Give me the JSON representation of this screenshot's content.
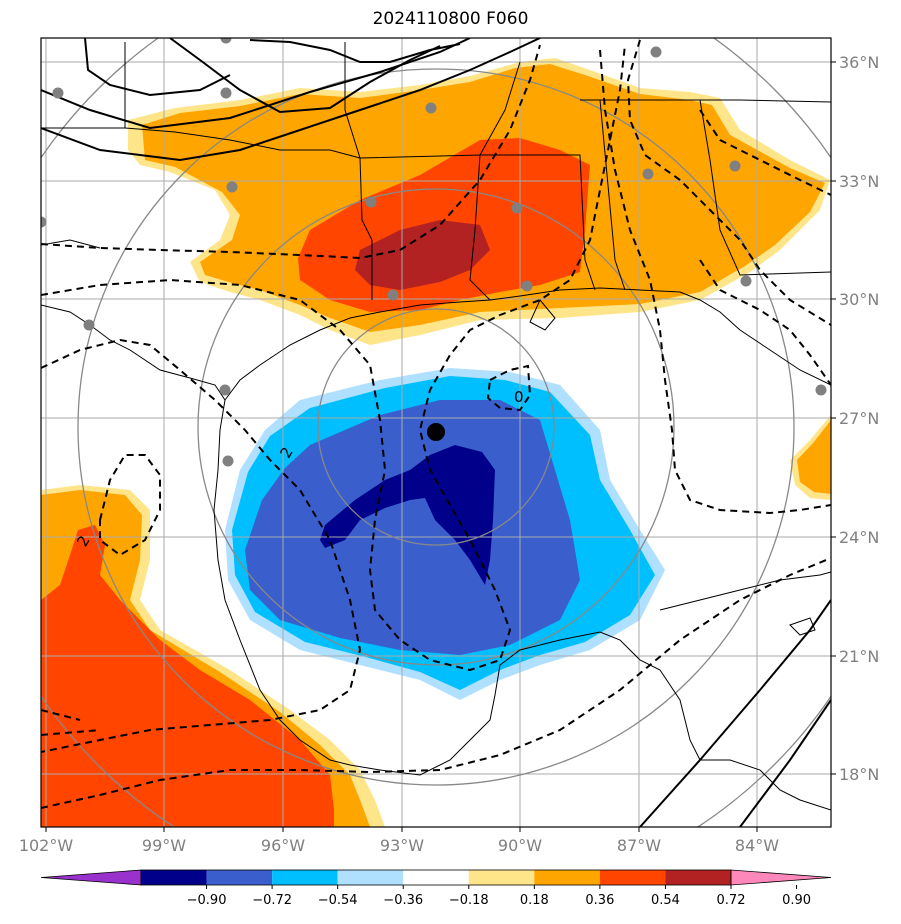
{
  "title": "2024110800 F060",
  "lon_labels": [
    "102°W",
    "99°W",
    "96°W",
    "93°W",
    "90°W",
    "87°W",
    "84°W"
  ],
  "lat_labels": [
    "36°N",
    "33°N",
    "30°N",
    "27°N",
    "24°N",
    "21°N",
    "18°N"
  ],
  "contour_labels": [
    "0",
    "2",
    "2"
  ],
  "colorbar": {
    "ticks": [
      "−0.90",
      "−0.72",
      "−0.54",
      "−0.36",
      "−0.18",
      "0.18",
      "0.36",
      "0.54",
      "0.72",
      "0.90"
    ],
    "colors": [
      "#9932cc",
      "#00008b",
      "#3a5fcd",
      "#00bfff",
      "#b0e0ff",
      "#ffffff",
      "#ffe58a",
      "#ffa500",
      "#ff4500",
      "#b22222",
      "#ff88bb"
    ]
  },
  "center_marker": {
    "lon": "92.3°W",
    "lat": "26.7°N"
  }
}
